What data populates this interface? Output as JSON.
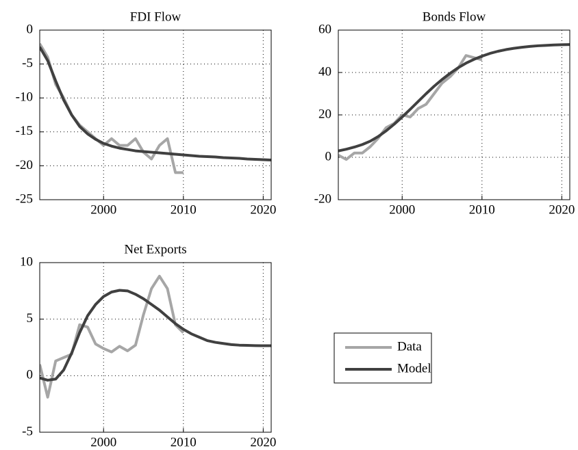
{
  "chart_data": [
    {
      "type": "line",
      "title": "FDI Flow",
      "x": [
        1992,
        1993,
        1994,
        1995,
        1996,
        1997,
        1998,
        1999,
        2000,
        2001,
        2002,
        2003,
        2004,
        2005,
        2006,
        2007,
        2008,
        2009,
        2010,
        2011,
        2012,
        2013,
        2014,
        2015,
        2016,
        2017,
        2018,
        2019,
        2020,
        2021
      ],
      "series": [
        {
          "name": "Data",
          "color": "#a6a6a6",
          "values": [
            -2,
            -4,
            -8,
            -10,
            -12.5,
            -14,
            -15,
            -16,
            -17,
            -16,
            -17,
            -17,
            -16,
            -18,
            -19,
            -17,
            -16,
            -21,
            -21,
            null,
            null,
            null,
            null,
            null,
            null,
            null,
            null,
            null,
            null,
            null
          ]
        },
        {
          "name": "Model",
          "color": "#404040",
          "values": [
            -2.5,
            -4.5,
            -7.5,
            -10.3,
            -12.5,
            -14.2,
            -15.3,
            -16.1,
            -16.7,
            -17.1,
            -17.4,
            -17.6,
            -17.8,
            -17.9,
            -18,
            -18.1,
            -18.2,
            -18.3,
            -18.4,
            -18.5,
            -18.6,
            -18.65,
            -18.7,
            -18.8,
            -18.85,
            -18.9,
            -19,
            -19.05,
            -19.1,
            -19.15
          ]
        }
      ],
      "xlim": [
        1992,
        2021
      ],
      "xticks": [
        2000,
        2010,
        2020
      ],
      "ylim": [
        -25,
        0
      ],
      "yticks": [
        0,
        -5,
        -10,
        -15,
        -20,
        -25
      ],
      "grid": true
    },
    {
      "type": "line",
      "title": "Bonds Flow",
      "x": [
        1992,
        1993,
        1994,
        1995,
        1996,
        1997,
        1998,
        1999,
        2000,
        2001,
        2002,
        2003,
        2004,
        2005,
        2006,
        2007,
        2008,
        2009,
        2010,
        2011,
        2012,
        2013,
        2014,
        2015,
        2016,
        2017,
        2018,
        2019,
        2020,
        2021
      ],
      "series": [
        {
          "name": "Data",
          "color": "#a6a6a6",
          "values": [
            1,
            -1,
            2,
            2,
            5,
            9,
            14,
            16,
            20,
            19,
            23,
            25,
            30,
            35,
            38,
            42,
            48,
            47,
            46,
            null,
            null,
            null,
            null,
            null,
            null,
            null,
            null,
            null,
            null,
            null
          ]
        },
        {
          "name": "Model",
          "color": "#404040",
          "values": [
            3,
            3.8,
            4.8,
            6,
            7.6,
            9.8,
            12.5,
            15.6,
            19,
            22.6,
            26.3,
            30,
            33.5,
            36.7,
            39.6,
            42.2,
            44.4,
            46.2,
            47.7,
            49,
            50,
            50.8,
            51.4,
            51.9,
            52.3,
            52.6,
            52.8,
            53,
            53.1,
            53.2
          ]
        }
      ],
      "xlim": [
        1992,
        2021
      ],
      "xticks": [
        2000,
        2010,
        2020
      ],
      "ylim": [
        -20,
        60
      ],
      "yticks": [
        -20,
        0,
        20,
        40,
        60
      ],
      "grid": true
    },
    {
      "type": "line",
      "title": "Net Exports",
      "x": [
        1992,
        1993,
        1994,
        1995,
        1996,
        1997,
        1998,
        1999,
        2000,
        2001,
        2002,
        2003,
        2004,
        2005,
        2006,
        2007,
        2008,
        2009,
        2010,
        2011,
        2012,
        2013,
        2014,
        2015,
        2016,
        2017,
        2018,
        2019,
        2020,
        2021
      ],
      "series": [
        {
          "name": "Data",
          "color": "#a6a6a6",
          "values": [
            1,
            -1.9,
            1.3,
            1.6,
            1.9,
            4.5,
            4.3,
            2.8,
            2.4,
            2.1,
            2.6,
            2.2,
            2.7,
            5.4,
            7.7,
            8.8,
            7.7,
            4.5,
            3.8,
            null,
            null,
            null,
            null,
            null,
            null,
            null,
            null,
            null,
            null,
            null
          ]
        },
        {
          "name": "Model",
          "color": "#404040",
          "values": [
            -0.2,
            -0.4,
            -0.3,
            0.5,
            2,
            3.8,
            5.3,
            6.3,
            7,
            7.4,
            7.55,
            7.5,
            7.2,
            6.8,
            6.3,
            5.8,
            5.2,
            4.6,
            4.1,
            3.7,
            3.4,
            3.1,
            2.95,
            2.85,
            2.75,
            2.7,
            2.68,
            2.66,
            2.65,
            2.65
          ]
        }
      ],
      "xlim": [
        1992,
        2021
      ],
      "xticks": [
        2000,
        2010,
        2020
      ],
      "ylim": [
        -5,
        10
      ],
      "yticks": [
        -5,
        0,
        5,
        10
      ],
      "grid": true
    }
  ]
}
